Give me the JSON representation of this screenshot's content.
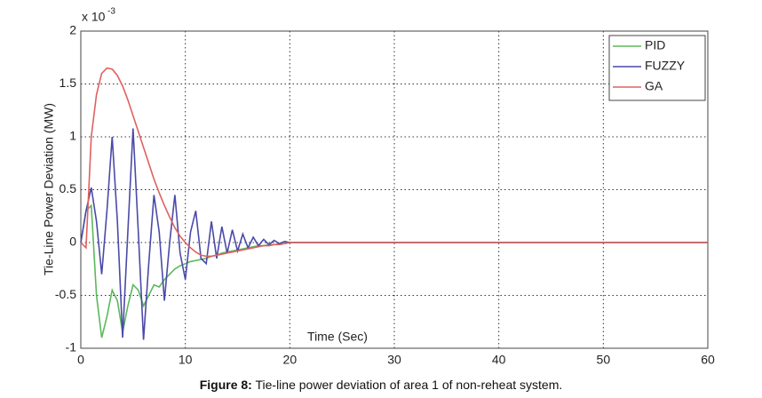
{
  "chart_data": {
    "type": "line",
    "y_scale_label": "x 10",
    "y_scale_exponent": "-3",
    "xlabel": "Time (Sec)",
    "ylabel": "Tie-Line Power Deviation (MW)",
    "caption_label": "Figure 8:",
    "caption_text": "Tie-line power deviation of area 1 of non-reheat system.",
    "xlim": [
      0,
      60
    ],
    "xticks": [
      0,
      10,
      20,
      30,
      40,
      50,
      60
    ],
    "ylim": [
      -1,
      2
    ],
    "yticks": [
      -1,
      -0.5,
      0,
      0.5,
      1,
      1.5,
      2
    ],
    "grid": true,
    "legend": "upper right",
    "x": [
      0,
      0.5,
      1,
      1.5,
      2,
      2.5,
      3,
      3.5,
      4,
      4.5,
      5,
      5.5,
      6,
      6.5,
      7,
      7.5,
      8,
      8.5,
      9,
      9.5,
      10,
      10.5,
      11,
      11.5,
      12,
      12.5,
      13,
      13.5,
      14,
      14.5,
      15,
      15.5,
      16,
      16.5,
      17,
      17.5,
      18,
      18.5,
      19,
      19.5,
      20,
      20.5,
      21,
      21.5,
      22,
      22.5,
      23,
      23.5,
      24,
      24.5,
      25,
      30,
      40,
      50,
      60
    ],
    "series": [
      {
        "name": "PID",
        "color": "#5cb85c",
        "values": [
          0,
          0.3,
          0.35,
          -0.5,
          -0.9,
          -0.7,
          -0.45,
          -0.55,
          -0.85,
          -0.6,
          -0.4,
          -0.45,
          -0.6,
          -0.5,
          -0.4,
          -0.42,
          -0.35,
          -0.3,
          -0.25,
          -0.22,
          -0.2,
          -0.18,
          -0.17,
          -0.16,
          -0.15,
          -0.13,
          -0.12,
          -0.1,
          -0.09,
          -0.08,
          -0.07,
          -0.06,
          -0.05,
          -0.04,
          -0.03,
          -0.03,
          -0.02,
          -0.02,
          -0.01,
          -0.01,
          0,
          0,
          0,
          0,
          0,
          0,
          0,
          0,
          0,
          0,
          0,
          0,
          0,
          0,
          0
        ]
      },
      {
        "name": "FUZZY",
        "color": "#4a4aa8",
        "values": [
          0,
          0.3,
          0.52,
          0.2,
          -0.3,
          0.3,
          1.0,
          0.2,
          -0.9,
          0.1,
          1.08,
          0.1,
          -0.92,
          -0.2,
          0.45,
          0.1,
          -0.55,
          0,
          0.45,
          -0.1,
          -0.35,
          0.1,
          0.3,
          -0.15,
          -0.2,
          0.2,
          -0.15,
          0.15,
          -0.1,
          0.12,
          -0.08,
          0.08,
          -0.05,
          0.05,
          -0.03,
          0.03,
          -0.02,
          0.02,
          -0.01,
          0.01,
          0,
          0,
          0,
          0,
          0,
          0,
          0,
          0,
          0,
          0,
          0,
          0,
          0,
          0,
          0
        ]
      },
      {
        "name": "GA",
        "color": "#e06060",
        "values": [
          0,
          -0.05,
          1.0,
          1.4,
          1.6,
          1.65,
          1.64,
          1.58,
          1.48,
          1.35,
          1.2,
          1.05,
          0.9,
          0.75,
          0.6,
          0.47,
          0.35,
          0.24,
          0.14,
          0.06,
          0,
          -0.05,
          -0.09,
          -0.12,
          -0.13,
          -0.13,
          -0.12,
          -0.11,
          -0.1,
          -0.09,
          -0.08,
          -0.07,
          -0.06,
          -0.05,
          -0.04,
          -0.03,
          -0.03,
          -0.02,
          -0.02,
          -0.01,
          0,
          0,
          0,
          0,
          0,
          0,
          0,
          0,
          0,
          0,
          0,
          0,
          0,
          0,
          0
        ]
      }
    ]
  }
}
